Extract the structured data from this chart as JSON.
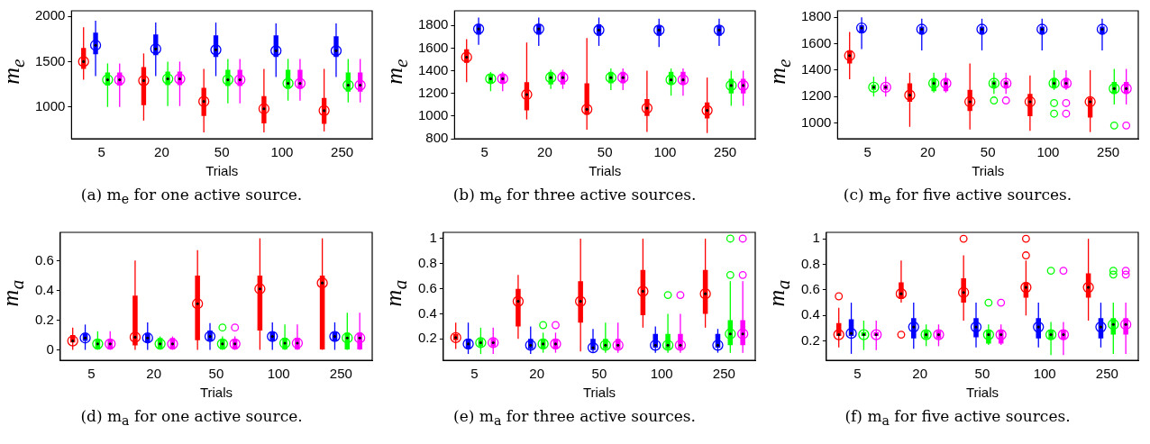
{
  "chart_data": [
    {
      "type": "box",
      "xlabel": "Trials",
      "ylabel": "m$_{e}$",
      "annotations": [
        "(a) m$_{e}$ for one active source."
      ],
      "categories": [
        "5",
        "20",
        "50",
        "100",
        "250"
      ],
      "ylim": [
        650,
        2060
      ],
      "yticks": [
        1000,
        1500,
        2000
      ],
      "series": [
        {
          "color": "#ff0000",
          "boxes": [
            {
              "low": 1300,
              "q1": 1420,
              "median": 1500,
              "q3": 1650,
              "high": 1880
            },
            {
              "low": 850,
              "q1": 1020,
              "median": 1290,
              "q3": 1440,
              "high": 1590
            },
            {
              "low": 720,
              "q1": 900,
              "median": 1060,
              "q3": 1210,
              "high": 1420
            },
            {
              "low": 720,
              "q1": 820,
              "median": 980,
              "q3": 1120,
              "high": 1420
            },
            {
              "low": 730,
              "q1": 815,
              "median": 960,
              "q3": 1100,
              "high": 1420
            }
          ]
        },
        {
          "color": "#0000ff",
          "boxes": [
            {
              "low": 1340,
              "q1": 1580,
              "median": 1680,
              "q3": 1820,
              "high": 1950
            },
            {
              "low": 1340,
              "q1": 1570,
              "median": 1640,
              "q3": 1800,
              "high": 1930
            },
            {
              "low": 1340,
              "q1": 1550,
              "median": 1630,
              "q3": 1790,
              "high": 1930
            },
            {
              "low": 1330,
              "q1": 1550,
              "median": 1620,
              "q3": 1790,
              "high": 1920
            },
            {
              "low": 1330,
              "q1": 1550,
              "median": 1620,
              "q3": 1780,
              "high": 1920
            }
          ]
        },
        {
          "color": "#00ff00",
          "boxes": [
            {
              "low": 1000,
              "q1": 1235,
              "median": 1300,
              "q3": 1380,
              "high": 1480
            },
            {
              "low": 1010,
              "q1": 1240,
              "median": 1310,
              "q3": 1390,
              "high": 1500
            },
            {
              "low": 1040,
              "q1": 1230,
              "median": 1300,
              "q3": 1410,
              "high": 1530
            },
            {
              "low": 1070,
              "q1": 1200,
              "median": 1260,
              "q3": 1410,
              "high": 1530
            },
            {
              "low": 1050,
              "q1": 1170,
              "median": 1240,
              "q3": 1380,
              "high": 1530
            }
          ]
        },
        {
          "color": "#ff00ff",
          "boxes": [
            {
              "low": 1000,
              "q1": 1235,
              "median": 1300,
              "q3": 1380,
              "high": 1480
            },
            {
              "low": 1010,
              "q1": 1240,
              "median": 1310,
              "q3": 1390,
              "high": 1500
            },
            {
              "low": 1040,
              "q1": 1230,
              "median": 1300,
              "q3": 1410,
              "high": 1530
            },
            {
              "low": 1070,
              "q1": 1200,
              "median": 1260,
              "q3": 1410,
              "high": 1530
            },
            {
              "low": 1050,
              "q1": 1170,
              "median": 1240,
              "q3": 1380,
              "high": 1530
            }
          ]
        }
      ]
    },
    {
      "type": "box",
      "xlabel": "Trials",
      "ylabel": "m$_{e}$",
      "annotations": [
        "(b) m$_{e}$ for three active sources."
      ],
      "categories": [
        "5",
        "20",
        "50",
        "100",
        "250"
      ],
      "ylim": [
        800,
        1930
      ],
      "yticks": [
        800,
        1000,
        1200,
        1400,
        1600,
        1800
      ],
      "series": [
        {
          "color": "#ff0000",
          "boxes": [
            {
              "low": 1300,
              "q1": 1470,
              "median": 1520,
              "q3": 1590,
              "high": 1680
            },
            {
              "low": 970,
              "q1": 1050,
              "median": 1190,
              "q3": 1300,
              "high": 1650
            },
            {
              "low": 880,
              "q1": 1010,
              "median": 1060,
              "q3": 1290,
              "high": 1690
            },
            {
              "low": 860,
              "q1": 1000,
              "median": 1070,
              "q3": 1150,
              "high": 1400
            },
            {
              "low": 850,
              "q1": 980,
              "median": 1050,
              "q3": 1120,
              "high": 1340
            }
          ]
        },
        {
          "color": "#0000ff",
          "boxes": [
            {
              "low": 1630,
              "q1": 1720,
              "median": 1770,
              "q3": 1810,
              "high": 1870
            },
            {
              "low": 1620,
              "q1": 1720,
              "median": 1770,
              "q3": 1810,
              "high": 1870
            },
            {
              "low": 1620,
              "q1": 1710,
              "median": 1760,
              "q3": 1810,
              "high": 1870
            },
            {
              "low": 1610,
              "q1": 1710,
              "median": 1760,
              "q3": 1800,
              "high": 1860
            },
            {
              "low": 1620,
              "q1": 1710,
              "median": 1760,
              "q3": 1800,
              "high": 1860
            }
          ]
        },
        {
          "color": "#00ff00",
          "boxes": [
            {
              "low": 1220,
              "q1": 1290,
              "median": 1330,
              "q3": 1370,
              "high": 1390
            },
            {
              "low": 1240,
              "q1": 1280,
              "median": 1340,
              "q3": 1390,
              "high": 1410
            },
            {
              "low": 1230,
              "q1": 1290,
              "median": 1340,
              "q3": 1390,
              "high": 1420
            },
            {
              "low": 1180,
              "q1": 1280,
              "median": 1320,
              "q3": 1390,
              "high": 1420
            },
            {
              "low": 1090,
              "q1": 1200,
              "median": 1270,
              "q3": 1330,
              "high": 1400
            }
          ]
        },
        {
          "color": "#ff00ff",
          "boxes": [
            {
              "low": 1220,
              "q1": 1290,
              "median": 1330,
              "q3": 1370,
              "high": 1390
            },
            {
              "low": 1240,
              "q1": 1280,
              "median": 1340,
              "q3": 1390,
              "high": 1410
            },
            {
              "low": 1230,
              "q1": 1290,
              "median": 1340,
              "q3": 1390,
              "high": 1420
            },
            {
              "low": 1180,
              "q1": 1280,
              "median": 1320,
              "q3": 1390,
              "high": 1420
            },
            {
              "low": 1090,
              "q1": 1200,
              "median": 1270,
              "q3": 1330,
              "high": 1400
            }
          ]
        }
      ]
    },
    {
      "type": "box",
      "xlabel": "Trials",
      "ylabel": "m$_{e}$",
      "annotations": [
        "(c) m$_{e}$ for five active sources."
      ],
      "categories": [
        "5",
        "20",
        "50",
        "100",
        "250"
      ],
      "ylim": [
        880,
        1850
      ],
      "yticks": [
        1000,
        1200,
        1400,
        1600,
        1800
      ],
      "series": [
        {
          "color": "#ff0000",
          "boxes": [
            {
              "low": 1330,
              "q1": 1450,
              "median": 1510,
              "q3": 1550,
              "high": 1690
            },
            {
              "low": 970,
              "q1": 1160,
              "median": 1210,
              "q3": 1300,
              "high": 1380
            },
            {
              "low": 950,
              "q1": 1090,
              "median": 1160,
              "q3": 1250,
              "high": 1450
            },
            {
              "low": 940,
              "q1": 1050,
              "median": 1160,
              "q3": 1220,
              "high": 1360
            },
            {
              "low": 930,
              "q1": 1040,
              "median": 1160,
              "q3": 1190,
              "high": 1400
            }
          ]
        },
        {
          "color": "#0000ff",
          "boxes": [
            {
              "low": 1560,
              "q1": 1680,
              "median": 1720,
              "q3": 1740,
              "high": 1800
            },
            {
              "low": 1550,
              "q1": 1670,
              "median": 1710,
              "q3": 1730,
              "high": 1790
            },
            {
              "low": 1550,
              "q1": 1670,
              "median": 1710,
              "q3": 1730,
              "high": 1790
            },
            {
              "low": 1550,
              "q1": 1670,
              "median": 1710,
              "q3": 1730,
              "high": 1790
            },
            {
              "low": 1550,
              "q1": 1670,
              "median": 1710,
              "q3": 1730,
              "high": 1790
            }
          ]
        },
        {
          "color": "#00ff00",
          "boxes": [
            {
              "low": 1200,
              "q1": 1250,
              "median": 1270,
              "q3": 1290,
              "high": 1350
            },
            {
              "low": 1230,
              "q1": 1240,
              "median": 1300,
              "q3": 1330,
              "high": 1380
            },
            {
              "low": 1220,
              "q1": 1270,
              "median": 1300,
              "q3": 1320,
              "high": 1380,
              "outliers": [
                1170
              ]
            },
            {
              "low": 1250,
              "q1": 1270,
              "median": 1300,
              "q3": 1340,
              "high": 1400,
              "outliers": [
                1150,
                1070
              ]
            },
            {
              "low": 1140,
              "q1": 1220,
              "median": 1260,
              "q3": 1310,
              "high": 1410,
              "outliers": [
                980
              ]
            }
          ]
        },
        {
          "color": "#ff00ff",
          "boxes": [
            {
              "low": 1200,
              "q1": 1250,
              "median": 1270,
              "q3": 1290,
              "high": 1350
            },
            {
              "low": 1230,
              "q1": 1240,
              "median": 1300,
              "q3": 1330,
              "high": 1380
            },
            {
              "low": 1220,
              "q1": 1270,
              "median": 1300,
              "q3": 1320,
              "high": 1380,
              "outliers": [
                1170
              ]
            },
            {
              "low": 1250,
              "q1": 1270,
              "median": 1300,
              "q3": 1340,
              "high": 1400,
              "outliers": [
                1150,
                1070
              ]
            },
            {
              "low": 1140,
              "q1": 1220,
              "median": 1260,
              "q3": 1310,
              "high": 1410,
              "outliers": [
                980
              ]
            }
          ]
        }
      ]
    },
    {
      "type": "box",
      "xlabel": "Trials",
      "ylabel": "m$_{a}$",
      "annotations": [
        "(d) m$_{a}$ for one active source."
      ],
      "categories": [
        "5",
        "20",
        "50",
        "100",
        "250"
      ],
      "ylim": [
        -0.07,
        0.79
      ],
      "yticks": [
        0,
        0.2,
        0.4,
        0.6
      ],
      "series": [
        {
          "color": "#ff0000",
          "boxes": [
            {
              "low": 0,
              "q1": 0.05,
              "median": 0.06,
              "q3": 0.1,
              "high": 0.15
            },
            {
              "low": 0,
              "q1": 0.03,
              "median": 0.085,
              "q3": 0.365,
              "high": 0.6
            },
            {
              "low": 0,
              "q1": 0.065,
              "median": 0.31,
              "q3": 0.5,
              "high": 0.67
            },
            {
              "low": 0,
              "q1": 0.13,
              "median": 0.41,
              "q3": 0.5,
              "high": 0.75
            },
            {
              "low": 0,
              "q1": 0,
              "median": 0.45,
              "q3": 0.5,
              "high": 0.75
            }
          ]
        },
        {
          "color": "#0000ff",
          "boxes": [
            {
              "low": 0,
              "q1": 0.06,
              "median": 0.08,
              "q3": 0.11,
              "high": 0.17
            },
            {
              "low": 0,
              "q1": 0.05,
              "median": 0.08,
              "q3": 0.11,
              "high": 0.185
            },
            {
              "low": 0,
              "q1": 0.06,
              "median": 0.09,
              "q3": 0.13,
              "high": 0.18
            },
            {
              "low": 0,
              "q1": 0.06,
              "median": 0.09,
              "q3": 0.12,
              "high": 0.185
            },
            {
              "low": 0,
              "q1": 0.06,
              "median": 0.09,
              "q3": 0.12,
              "high": 0.185
            }
          ]
        },
        {
          "color": "#00ff00",
          "boxes": [
            {
              "low": 0,
              "q1": 0,
              "median": 0.04,
              "q3": 0.07,
              "high": 0.125
            },
            {
              "low": 0,
              "q1": 0,
              "median": 0.04,
              "q3": 0.08,
              "high": 0.09
            },
            {
              "low": 0,
              "q1": 0,
              "median": 0.04,
              "q3": 0.07,
              "high": 0.09,
              "outliers": [
                0.15
              ]
            },
            {
              "low": 0,
              "q1": 0,
              "median": 0.045,
              "q3": 0.08,
              "high": 0.17
            },
            {
              "low": 0,
              "q1": 0,
              "median": 0.08,
              "q3": 0.115,
              "high": 0.25
            }
          ]
        },
        {
          "color": "#ff00ff",
          "boxes": [
            {
              "low": 0,
              "q1": 0,
              "median": 0.04,
              "q3": 0.07,
              "high": 0.125
            },
            {
              "low": 0,
              "q1": 0,
              "median": 0.04,
              "q3": 0.08,
              "high": 0.09
            },
            {
              "low": 0,
              "q1": 0,
              "median": 0.04,
              "q3": 0.07,
              "high": 0.09,
              "outliers": [
                0.15
              ]
            },
            {
              "low": 0,
              "q1": 0,
              "median": 0.045,
              "q3": 0.08,
              "high": 0.17
            },
            {
              "low": 0,
              "q1": 0,
              "median": 0.08,
              "q3": 0.115,
              "high": 0.25
            }
          ]
        }
      ]
    },
    {
      "type": "box",
      "xlabel": "Trials",
      "ylabel": "m$_{a}$",
      "annotations": [
        "(e) m$_{a}$ for three active sources."
      ],
      "categories": [
        "5",
        "20",
        "50",
        "100",
        "250"
      ],
      "ylim": [
        0.03,
        1.05
      ],
      "yticks": [
        0.2,
        0.4,
        0.6,
        0.8,
        1
      ],
      "series": [
        {
          "color": "#ff0000",
          "boxes": [
            {
              "low": 0.12,
              "q1": 0.19,
              "median": 0.21,
              "q3": 0.24,
              "high": 0.33
            },
            {
              "low": 0.2,
              "q1": 0.3,
              "median": 0.5,
              "q3": 0.6,
              "high": 0.71
            },
            {
              "low": 0.1,
              "q1": 0.33,
              "median": 0.5,
              "q3": 0.66,
              "high": 1
            },
            {
              "low": 0.29,
              "q1": 0.39,
              "median": 0.58,
              "q3": 0.75,
              "high": 1
            },
            {
              "low": 0.29,
              "q1": 0.4,
              "median": 0.56,
              "q3": 0.75,
              "high": 1
            }
          ]
        },
        {
          "color": "#0000ff",
          "boxes": [
            {
              "low": 0.08,
              "q1": 0.12,
              "median": 0.16,
              "q3": 0.2,
              "high": 0.33
            },
            {
              "low": 0.08,
              "q1": 0.12,
              "median": 0.15,
              "q3": 0.2,
              "high": 0.3
            },
            {
              "low": 0.09,
              "q1": 0.11,
              "median": 0.13,
              "q3": 0.2,
              "high": 0.28
            },
            {
              "low": 0.09,
              "q1": 0.13,
              "median": 0.15,
              "q3": 0.24,
              "high": 0.3
            },
            {
              "low": 0.09,
              "q1": 0.13,
              "median": 0.15,
              "q3": 0.24,
              "high": 0.28
            }
          ]
        },
        {
          "color": "#00ff00",
          "boxes": [
            {
              "low": 0.08,
              "q1": 0.14,
              "median": 0.17,
              "q3": 0.2,
              "high": 0.29
            },
            {
              "low": 0.09,
              "q1": 0.12,
              "median": 0.16,
              "q3": 0.2,
              "high": 0.25,
              "outliers": [
                0.31
              ]
            },
            {
              "low": 0.09,
              "q1": 0.12,
              "median": 0.15,
              "q3": 0.2,
              "high": 0.33
            },
            {
              "low": 0.09,
              "q1": 0.12,
              "median": 0.15,
              "q3": 0.24,
              "high": 0.4,
              "outliers": [
                0.55
              ]
            },
            {
              "low": 0.09,
              "q1": 0.15,
              "median": 0.24,
              "q3": 0.35,
              "high": 0.66,
              "outliers": [
                0.71,
                1
              ]
            }
          ]
        },
        {
          "color": "#ff00ff",
          "boxes": [
            {
              "low": 0.08,
              "q1": 0.14,
              "median": 0.17,
              "q3": 0.2,
              "high": 0.29
            },
            {
              "low": 0.09,
              "q1": 0.12,
              "median": 0.16,
              "q3": 0.2,
              "high": 0.25,
              "outliers": [
                0.31
              ]
            },
            {
              "low": 0.09,
              "q1": 0.12,
              "median": 0.15,
              "q3": 0.2,
              "high": 0.33
            },
            {
              "low": 0.09,
              "q1": 0.12,
              "median": 0.15,
              "q3": 0.24,
              "high": 0.4,
              "outliers": [
                0.55
              ]
            },
            {
              "low": 0.09,
              "q1": 0.15,
              "median": 0.24,
              "q3": 0.35,
              "high": 0.66,
              "outliers": [
                0.71,
                1
              ]
            }
          ]
        }
      ]
    },
    {
      "type": "box",
      "xlabel": "Trials",
      "ylabel": "m$_{a}$",
      "annotations": [
        "(f) m$_{a}$ for five active sources."
      ],
      "categories": [
        "5",
        "20",
        "50",
        "100",
        "250"
      ],
      "ylim": [
        0.05,
        1.05
      ],
      "yticks": [
        0.2,
        0.4,
        0.6,
        0.8,
        1
      ],
      "series": [
        {
          "color": "#ff0000",
          "boxes": [
            {
              "low": 0.15,
              "q1": 0.24,
              "median": 0.25,
              "q3": 0.34,
              "high": 0.46,
              "outliers": [
                0.55
              ]
            },
            {
              "low": 0.5,
              "q1": 0.53,
              "median": 0.57,
              "q3": 0.66,
              "high": 0.83,
              "outliers": [
                0.25
              ]
            },
            {
              "low": 0.36,
              "q1": 0.5,
              "median": 0.58,
              "q3": 0.69,
              "high": 0.87,
              "outliers": [
                1
              ]
            },
            {
              "low": 0.4,
              "q1": 0.54,
              "median": 0.62,
              "q3": 0.66,
              "high": 0.83,
              "outliers": [
                0.87,
                1
              ]
            },
            {
              "low": 0.36,
              "q1": 0.54,
              "median": 0.62,
              "q3": 0.73,
              "high": 1
            }
          ]
        },
        {
          "color": "#0000ff",
          "boxes": [
            {
              "low": 0.1,
              "q1": 0.24,
              "median": 0.26,
              "q3": 0.37,
              "high": 0.5
            },
            {
              "low": 0.14,
              "q1": 0.22,
              "median": 0.31,
              "q3": 0.38,
              "high": 0.5
            },
            {
              "low": 0.15,
              "q1": 0.23,
              "median": 0.31,
              "q3": 0.38,
              "high": 0.5
            },
            {
              "low": 0.15,
              "q1": 0.22,
              "median": 0.31,
              "q3": 0.38,
              "high": 0.5
            },
            {
              "low": 0.15,
              "q1": 0.22,
              "median": 0.31,
              "q3": 0.38,
              "high": 0.5
            }
          ]
        },
        {
          "color": "#00ff00",
          "boxes": [
            {
              "low": 0.13,
              "q1": 0.24,
              "median": 0.25,
              "q3": 0.27,
              "high": 0.36
            },
            {
              "low": 0.16,
              "q1": 0.22,
              "median": 0.25,
              "q3": 0.28,
              "high": 0.33
            },
            {
              "low": 0.17,
              "q1": 0.18,
              "median": 0.25,
              "q3": 0.29,
              "high": 0.33,
              "outliers": [
                0.5
              ]
            },
            {
              "low": 0.09,
              "q1": 0.21,
              "median": 0.25,
              "q3": 0.29,
              "high": 0.35,
              "outliers": [
                0.75
              ]
            },
            {
              "low": 0.1,
              "q1": 0.25,
              "median": 0.33,
              "q3": 0.38,
              "high": 0.5,
              "outliers": [
                0.75,
                0.72
              ]
            }
          ]
        },
        {
          "color": "#ff00ff",
          "boxes": [
            {
              "low": 0.13,
              "q1": 0.24,
              "median": 0.25,
              "q3": 0.27,
              "high": 0.36
            },
            {
              "low": 0.16,
              "q1": 0.22,
              "median": 0.25,
              "q3": 0.28,
              "high": 0.33
            },
            {
              "low": 0.17,
              "q1": 0.18,
              "median": 0.25,
              "q3": 0.29,
              "high": 0.33,
              "outliers": [
                0.5
              ]
            },
            {
              "low": 0.09,
              "q1": 0.21,
              "median": 0.25,
              "q3": 0.29,
              "high": 0.35,
              "outliers": [
                0.75
              ]
            },
            {
              "low": 0.1,
              "q1": 0.25,
              "median": 0.33,
              "q3": 0.38,
              "high": 0.5,
              "outliers": [
                0.75,
                0.72
              ]
            }
          ]
        }
      ]
    }
  ]
}
